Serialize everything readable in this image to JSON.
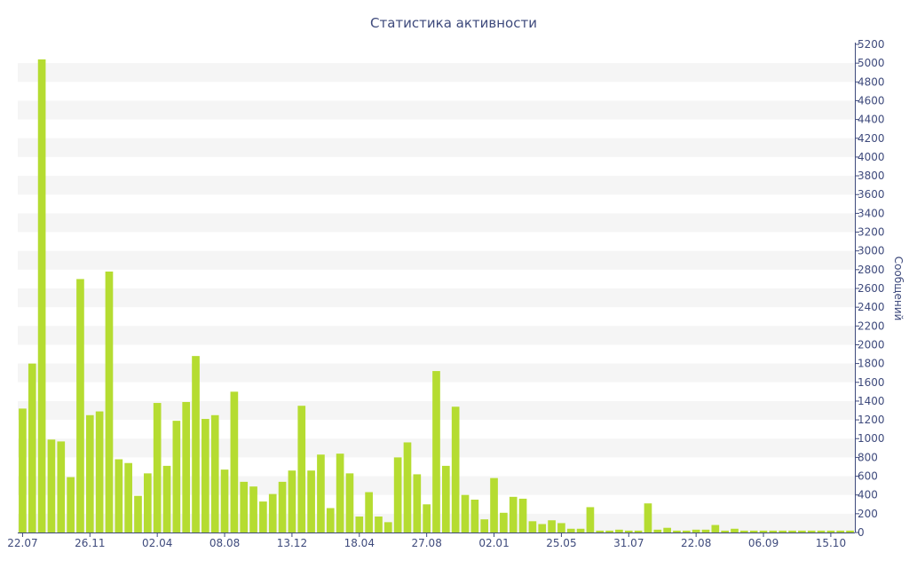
{
  "chart_data": {
    "type": "bar",
    "title": "Статистика активности",
    "ylabel": "Сообщений",
    "xlabel": "",
    "ylim": [
      0,
      5200
    ],
    "y_ticks": [
      0,
      200,
      400,
      600,
      800,
      1000,
      1200,
      1400,
      1600,
      1800,
      2000,
      2200,
      2400,
      2600,
      2800,
      3000,
      3200,
      3400,
      3600,
      3800,
      4000,
      4200,
      4400,
      4600,
      4800,
      5000,
      5200
    ],
    "y_axis_side": "right",
    "grid": "alternating horizontal bands",
    "x_tick_labels": [
      {
        "label": "22.07",
        "index": 0
      },
      {
        "label": "26.11",
        "index": 7
      },
      {
        "label": "02.04",
        "index": 14
      },
      {
        "label": "08.08",
        "index": 21
      },
      {
        "label": "13.12",
        "index": 28
      },
      {
        "label": "18.04",
        "index": 35
      },
      {
        "label": "27.08",
        "index": 42
      },
      {
        "label": "02.01",
        "index": 49
      },
      {
        "label": "25.05",
        "index": 56
      },
      {
        "label": "31.07",
        "index": 63
      },
      {
        "label": "22.08",
        "index": 70
      },
      {
        "label": "06.09",
        "index": 77
      },
      {
        "label": "15.10",
        "index": 84
      }
    ],
    "bar_color": "#b5dc31",
    "values": [
      1320,
      1800,
      5040,
      990,
      970,
      590,
      2700,
      1250,
      1290,
      2780,
      780,
      740,
      390,
      630,
      1380,
      710,
      1190,
      1390,
      1880,
      1210,
      1250,
      670,
      1500,
      540,
      490,
      330,
      410,
      540,
      660,
      1350,
      660,
      830,
      260,
      840,
      630,
      170,
      430,
      170,
      110,
      800,
      960,
      620,
      300,
      1720,
      710,
      1340,
      400,
      350,
      140,
      580,
      210,
      380,
      360,
      120,
      90,
      130,
      100,
      40,
      40,
      270,
      20,
      20,
      30,
      20,
      20,
      310,
      30,
      50,
      20,
      20,
      30,
      30,
      80,
      20,
      40,
      20,
      20,
      20,
      20,
      20,
      20,
      20,
      20,
      20,
      20,
      20,
      20
    ]
  }
}
